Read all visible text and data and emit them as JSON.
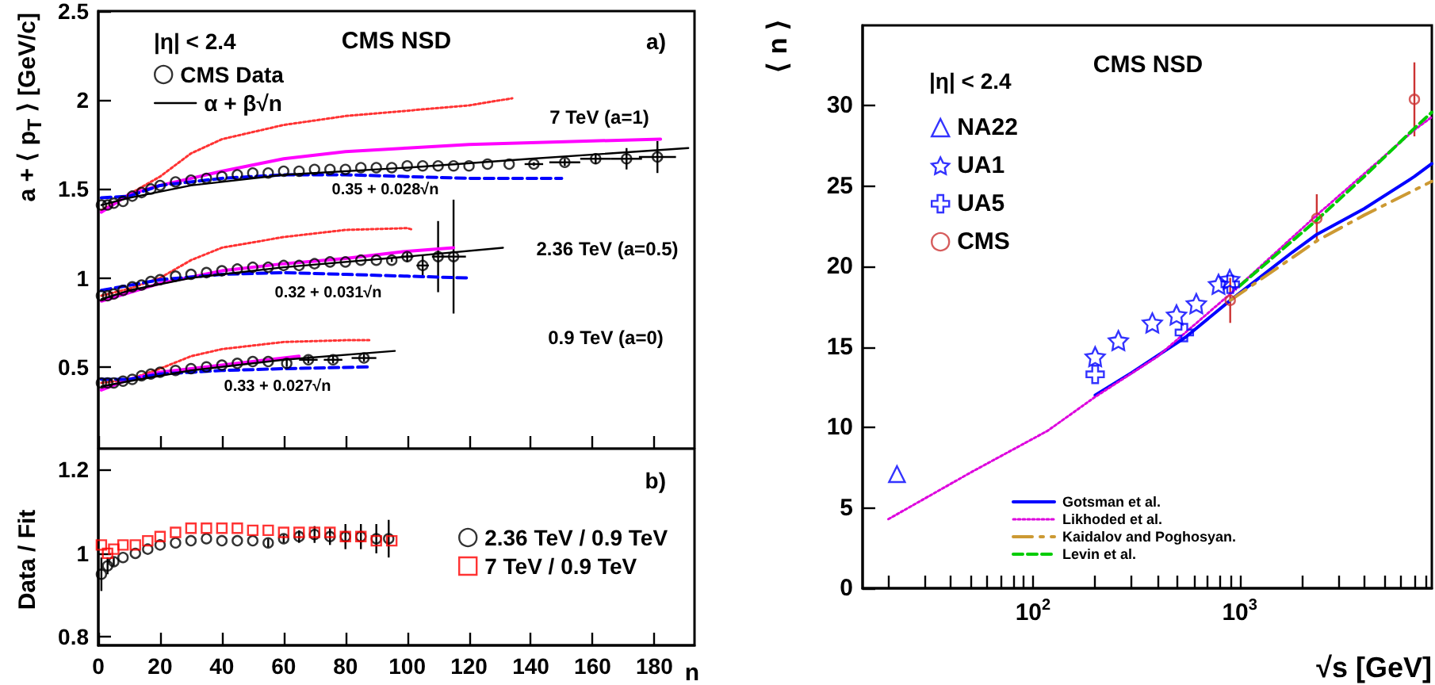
{
  "chart_data": [
    {
      "type": "line",
      "ylabel": "a + ⟨ p$_{T}$ ⟩ [GeV/c]",
      "xlim": [
        0,
        193
      ],
      "xticks": [
        0,
        20,
        40,
        60,
        80,
        100,
        120,
        140,
        160,
        180
      ],
      "ylim": [
        0.04,
        2.5
      ],
      "yticks": [
        0.5,
        1,
        1.5,
        2,
        2.5
      ],
      "tick_labels": "y",
      "grid": false,
      "legend": "top left",
      "annotations": [
        "|η| < 2.4",
        "CMS NSD",
        "a)",
        "7 TeV (a=1)",
        "2.36 TeV (a=0.5)",
        "0.9 TeV (a=0)",
        "0.35 + 0.028√n",
        "0.32 + 0.031√n",
        "0.33 + 0.027√n"
      ],
      "series": [
        {
          "color": "#ff3333",
          "line_style": "dotted",
          "marker": "none",
          "x": [
            1,
            10,
            20,
            30,
            40,
            60,
            80,
            100,
            120,
            134
          ],
          "values": [
            1.38,
            1.47,
            1.57,
            1.7,
            1.78,
            1.86,
            1.91,
            1.94,
            1.97,
            2.01
          ]
        },
        {
          "color": "#ff3333",
          "line_style": "dotted",
          "marker": "none",
          "x": [
            1,
            10,
            20,
            30,
            40,
            60,
            80,
            100,
            102
          ],
          "values": [
            0.9,
            0.94,
            1.0,
            1.1,
            1.17,
            1.23,
            1.27,
            1.28,
            1.27
          ]
        },
        {
          "color": "#ff3333",
          "line_style": "dotted",
          "marker": "none",
          "x": [
            1,
            10,
            20,
            30,
            40,
            60,
            80,
            88
          ],
          "values": [
            0.41,
            0.43,
            0.49,
            0.56,
            0.6,
            0.64,
            0.65,
            0.65
          ]
        },
        {
          "color": "#ff00ff",
          "line_style": "solid",
          "marker": "none",
          "x": [
            1,
            10,
            20,
            40,
            60,
            80,
            100,
            120,
            140,
            160,
            182
          ],
          "values": [
            1.37,
            1.47,
            1.52,
            1.6,
            1.67,
            1.71,
            1.73,
            1.75,
            1.76,
            1.77,
            1.78
          ]
        },
        {
          "color": "#ff00ff",
          "line_style": "solid",
          "marker": "none",
          "x": [
            1,
            20,
            40,
            60,
            80,
            100,
            115
          ],
          "values": [
            0.87,
            0.97,
            1.04,
            1.08,
            1.11,
            1.15,
            1.17
          ]
        },
        {
          "color": "#ff00ff",
          "line_style": "solid",
          "marker": "none",
          "x": [
            1,
            10,
            20,
            40,
            60,
            65
          ],
          "values": [
            0.37,
            0.43,
            0.47,
            0.51,
            0.55,
            0.56
          ]
        },
        {
          "color": "#0000ff",
          "line_style": "dashed",
          "marker": "none",
          "x": [
            1,
            10,
            20,
            40,
            60,
            80,
            100,
            120,
            150
          ],
          "values": [
            1.45,
            1.46,
            1.52,
            1.56,
            1.58,
            1.58,
            1.57,
            1.56,
            1.56
          ]
        },
        {
          "color": "#0000ff",
          "line_style": "dashed",
          "marker": "none",
          "x": [
            1,
            20,
            40,
            60,
            80,
            100,
            120
          ],
          "values": [
            0.93,
            0.99,
            1.02,
            1.03,
            1.02,
            1.01,
            1.0
          ]
        },
        {
          "color": "#0000ff",
          "line_style": "dashed",
          "marker": "none",
          "x": [
            1,
            10,
            20,
            40,
            60,
            88
          ],
          "values": [
            0.43,
            0.43,
            0.46,
            0.48,
            0.49,
            0.5
          ]
        },
        {
          "name": "α + β√n",
          "color": "#000000",
          "line_style": "solid",
          "marker": "none",
          "x": [
            1,
            10,
            30,
            60,
            100,
            140,
            191
          ],
          "values": [
            1.41,
            1.45,
            1.52,
            1.58,
            1.62,
            1.67,
            1.73
          ]
        },
        {
          "color": "#000000",
          "line_style": "solid",
          "marker": "none",
          "x": [
            1,
            10,
            30,
            60,
            100,
            131
          ],
          "values": [
            0.88,
            0.93,
            1.0,
            1.06,
            1.12,
            1.17
          ]
        },
        {
          "color": "#000000",
          "line_style": "solid",
          "marker": "none",
          "x": [
            1,
            10,
            30,
            60,
            96
          ],
          "values": [
            0.39,
            0.42,
            0.48,
            0.54,
            0.59
          ]
        },
        {
          "type": "scatter",
          "name": "CMS Data",
          "color": "#000000",
          "marker": "circle",
          "x": [
            1,
            3,
            5,
            8,
            11,
            14,
            17,
            20,
            25,
            30,
            35,
            40,
            45,
            50,
            55,
            60,
            65,
            70,
            75,
            80,
            85,
            90,
            95,
            100,
            105,
            110,
            115,
            120,
            126,
            133,
            141,
            151,
            161,
            171,
            181
          ],
          "values": [
            1.41,
            1.41,
            1.42,
            1.43,
            1.46,
            1.48,
            1.5,
            1.52,
            1.54,
            1.55,
            1.56,
            1.57,
            1.58,
            1.59,
            1.59,
            1.6,
            1.6,
            1.61,
            1.61,
            1.61,
            1.62,
            1.62,
            1.62,
            1.63,
            1.63,
            1.63,
            1.63,
            1.63,
            1.64,
            1.64,
            1.64,
            1.65,
            1.67,
            1.67,
            1.68
          ],
          "errors": [
            null,
            null,
            null,
            null,
            null,
            null,
            null,
            null,
            null,
            null,
            null,
            null,
            null,
            null,
            null,
            null,
            null,
            null,
            null,
            null,
            null,
            null,
            null,
            null,
            null,
            null,
            null,
            null,
            null,
            null,
            0.01,
            0.02,
            0.03,
            0.06,
            0.09
          ],
          "xerrors": [
            null,
            null,
            null,
            null,
            null,
            null,
            null,
            null,
            null,
            null,
            null,
            null,
            null,
            null,
            null,
            null,
            null,
            null,
            null,
            null,
            null,
            null,
            null,
            null,
            null,
            null,
            null,
            null,
            null,
            null,
            3,
            5,
            5,
            5,
            6
          ]
        },
        {
          "type": "scatter",
          "color": "#000000",
          "marker": "circle",
          "x": [
            1,
            3,
            5,
            8,
            11,
            14,
            17,
            20,
            25,
            30,
            35,
            40,
            45,
            50,
            55,
            60,
            65,
            70,
            75,
            80,
            85,
            90,
            95,
            100,
            105,
            110,
            115
          ],
          "values": [
            0.9,
            0.9,
            0.91,
            0.93,
            0.95,
            0.96,
            0.98,
            0.99,
            1.01,
            1.02,
            1.03,
            1.04,
            1.05,
            1.06,
            1.06,
            1.07,
            1.07,
            1.08,
            1.09,
            1.09,
            1.1,
            1.1,
            1.1,
            1.12,
            1.07,
            1.12,
            1.12
          ],
          "errors": [
            null,
            null,
            null,
            null,
            null,
            null,
            null,
            null,
            null,
            null,
            null,
            null,
            null,
            null,
            null,
            null,
            null,
            null,
            null,
            null,
            null,
            null,
            0.01,
            0.03,
            0.06,
            0.2,
            0.32
          ],
          "xerrors": [
            null,
            null,
            null,
            null,
            null,
            null,
            null,
            null,
            null,
            null,
            null,
            null,
            null,
            null,
            null,
            null,
            null,
            null,
            null,
            null,
            null,
            null,
            null,
            2,
            2,
            2,
            4
          ]
        },
        {
          "type": "scatter",
          "color": "#000000",
          "marker": "circle",
          "x": [
            1,
            3,
            5,
            8,
            11,
            14,
            17,
            20,
            25,
            30,
            35,
            40,
            45,
            50,
            55,
            61,
            68,
            76,
            86
          ],
          "values": [
            0.41,
            0.41,
            0.41,
            0.42,
            0.43,
            0.45,
            0.46,
            0.47,
            0.48,
            0.49,
            0.5,
            0.51,
            0.52,
            0.53,
            0.53,
            0.52,
            0.54,
            0.54,
            0.55
          ],
          "errors": [
            null,
            null,
            null,
            null,
            null,
            null,
            null,
            null,
            null,
            null,
            null,
            null,
            null,
            null,
            null,
            0.02,
            0.02,
            0.02,
            0.02
          ],
          "xerrors": [
            null,
            null,
            null,
            null,
            null,
            null,
            null,
            null,
            null,
            null,
            null,
            null,
            null,
            null,
            null,
            null,
            3,
            3,
            4
          ]
        }
      ]
    },
    {
      "type": "scatter",
      "ylabel": "Data / Fit",
      "xlabel": "n",
      "xlim": [
        0,
        193
      ],
      "xticks": [
        0,
        20,
        40,
        60,
        80,
        100,
        120,
        140,
        160,
        180
      ],
      "ylim": [
        0.78,
        1.25
      ],
      "yticks": [
        0.8,
        1,
        1.2
      ],
      "grid": false,
      "legend": "right",
      "annotations": [
        "b)"
      ],
      "series": [
        {
          "name": "2.36 TeV / 0.9 TeV",
          "color": "#000000",
          "marker": "circle",
          "x": [
            1,
            3,
            5,
            8,
            12,
            16,
            20,
            25,
            30,
            35,
            40,
            45,
            50,
            55,
            60,
            65,
            70,
            75,
            80,
            85,
            90,
            94
          ],
          "values": [
            0.95,
            0.97,
            0.98,
            0.99,
            1.0,
            1.01,
            1.02,
            1.025,
            1.03,
            1.035,
            1.03,
            1.03,
            1.03,
            1.025,
            1.035,
            1.04,
            1.045,
            1.04,
            1.04,
            1.04,
            1.035,
            1.035
          ],
          "errors": [
            0.04,
            0.02,
            0.01,
            null,
            null,
            null,
            null,
            null,
            null,
            null,
            null,
            null,
            null,
            0.01,
            0.01,
            0.015,
            0.02,
            0.02,
            0.03,
            0.03,
            0.035,
            0.045
          ]
        },
        {
          "name": "7 TeV / 0.9 TeV",
          "color": "#ff0000",
          "marker": "square",
          "x": [
            1,
            3,
            5,
            8,
            12,
            16,
            20,
            25,
            30,
            35,
            40,
            45,
            50,
            55,
            60,
            65,
            70,
            75,
            80,
            85,
            90,
            95
          ],
          "values": [
            1.02,
            1.0,
            1.01,
            1.02,
            1.02,
            1.03,
            1.04,
            1.05,
            1.06,
            1.06,
            1.06,
            1.06,
            1.055,
            1.055,
            1.05,
            1.05,
            1.05,
            1.05,
            1.04,
            1.04,
            1.03,
            1.03
          ]
        }
      ]
    },
    {
      "type": "scatter",
      "ylabel": "⟨ n ⟩",
      "xlabel": "√s [GeV]",
      "log": "x",
      "xlim": [
        15,
        8500
      ],
      "xticks": [
        {
          "value": 20,
          "label": null
        },
        {
          "value": 30,
          "label": null
        },
        {
          "value": 40,
          "label": null
        },
        {
          "value": 50,
          "label": null
        },
        {
          "value": 60,
          "label": null
        },
        {
          "value": 70,
          "label": null
        },
        {
          "value": 80,
          "label": null
        },
        {
          "value": 90,
          "label": null
        },
        {
          "value": 100,
          "label": "10$^{2}$"
        },
        {
          "value": 200,
          "label": null
        },
        {
          "value": 300,
          "label": null
        },
        {
          "value": 400,
          "label": null
        },
        {
          "value": 500,
          "label": null
        },
        {
          "value": 600,
          "label": null
        },
        {
          "value": 700,
          "label": null
        },
        {
          "value": 800,
          "label": null
        },
        {
          "value": 900,
          "label": null
        },
        {
          "value": 1000,
          "label": "10$^{3}$"
        },
        {
          "value": 2000,
          "label": null
        },
        {
          "value": 3000,
          "label": null
        },
        {
          "value": 4000,
          "label": null
        },
        {
          "value": 5000,
          "label": null
        },
        {
          "value": 6000,
          "label": null
        },
        {
          "value": 7000,
          "label": null
        },
        {
          "value": 8000,
          "label": null
        }
      ],
      "ylim": [
        0,
        35
      ],
      "yticks": [
        0,
        5,
        10,
        15,
        20,
        25,
        30
      ],
      "grid": false,
      "legend": "left",
      "annotations": [
        "|η| < 2.4",
        "CMS NSD"
      ],
      "series": [
        {
          "type": "line",
          "name": "Gotsman et al.",
          "color": "#0000ff",
          "line_style": "solid",
          "marker": "none",
          "x": [
            200,
            300,
            546,
            900,
            1800,
            2360,
            4000,
            7000,
            8500
          ],
          "values": [
            12.0,
            13.4,
            15.6,
            17.9,
            20.9,
            22.0,
            23.6,
            25.6,
            26.4
          ]
        },
        {
          "type": "line",
          "name": "Likhoded et al.",
          "color": "#dd00dd",
          "line_style": "dotted",
          "marker": "none",
          "x": [
            20,
            50,
            118,
            200,
            400,
            900,
            2360,
            7000,
            8500
          ],
          "values": [
            4.3,
            7.2,
            9.8,
            11.9,
            14.4,
            18.3,
            23.2,
            28.5,
            29.3
          ]
        },
        {
          "type": "line",
          "name": "Kaidalov and Poghosyan.",
          "color": "#cc9933",
          "line_style": "dashdot",
          "marker": "none",
          "x": [
            900,
            2360,
            4000,
            8500
          ],
          "values": [
            17.9,
            21.6,
            23.2,
            25.3
          ]
        },
        {
          "type": "line",
          "name": "Levin et al.",
          "color": "#00cc00",
          "line_style": "dashed",
          "marker": "none",
          "x": [
            1000,
            2360,
            4000,
            7000,
            8500
          ],
          "values": [
            18.8,
            22.9,
            25.6,
            28.6,
            29.6
          ]
        },
        {
          "name": "NA22",
          "color": "#0000ff",
          "marker": "triangle",
          "x": [
            22
          ],
          "values": [
            7.1
          ]
        },
        {
          "name": "UA1",
          "color": "#0000ff",
          "marker": "star",
          "x": [
            200,
            259,
            378,
            495,
            617,
            790,
            895
          ],
          "values": [
            14.4,
            15.4,
            16.5,
            17.0,
            17.7,
            18.9,
            19.2
          ]
        },
        {
          "name": "UA5",
          "color": "#0000ff",
          "marker": "cross",
          "x": [
            200,
            540,
            900
          ],
          "values": [
            13.3,
            15.9,
            18.9
          ]
        },
        {
          "name": "CMS",
          "color": "#cc3333",
          "marker": "circle",
          "x": [
            900,
            2360,
            7000
          ],
          "values": [
            17.9,
            23.0,
            30.4
          ],
          "errors": [
            1.4,
            1.5,
            2.3
          ]
        }
      ]
    }
  ]
}
